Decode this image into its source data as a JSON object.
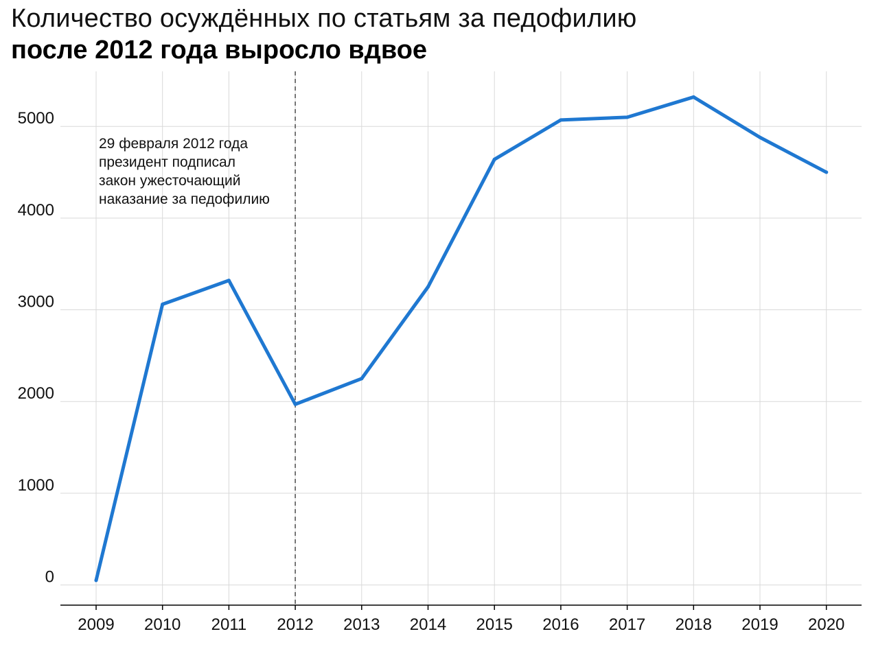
{
  "chart_data": {
    "type": "line",
    "title": "Количество осуждённых по статьям за педофилию",
    "subtitle": "после 2012 года выросло вдвое",
    "xlabel": "",
    "ylabel": "",
    "x": [
      "2009",
      "2010",
      "2011",
      "2012",
      "2013",
      "2014",
      "2015",
      "2016",
      "2017",
      "2018",
      "2019",
      "2020"
    ],
    "series": [
      {
        "values": [
          50,
          3060,
          3320,
          1970,
          2250,
          3250,
          4640,
          5070,
          5100,
          5320,
          4880,
          4500
        ]
      }
    ],
    "yticks": [
      "0",
      "1000",
      "2000",
      "3000",
      "4000",
      "5000"
    ],
    "ylim": [
      -220,
      5600
    ],
    "grid": true,
    "line_color": "#1f78d1",
    "marker": {
      "x": "2012",
      "style": "dashed"
    },
    "annotation": [
      "29 февраля 2012 года",
      "президент подписал",
      "закон ужесточающий",
      "наказание за педофилию"
    ]
  }
}
